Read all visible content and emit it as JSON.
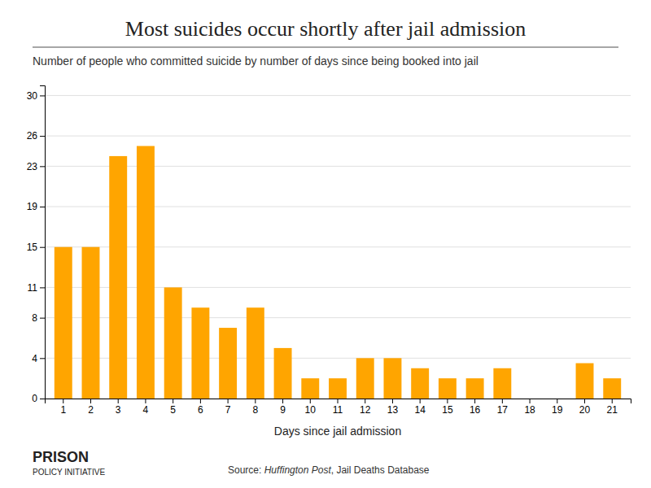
{
  "chart_data": {
    "type": "bar",
    "title": "Most suicides occur shortly after jail admission",
    "subtitle": "Number of people who committed suicide by number of days since being booked into jail",
    "xlabel": "Days since jail admission",
    "annotations": [
      "Source: ",
      "Huffington Post",
      ", Jail Deaths Database",
      "PRISON",
      "POLICY INITIATIVE"
    ],
    "categories": [
      1,
      2,
      3,
      4,
      5,
      6,
      7,
      8,
      9,
      10,
      11,
      12,
      13,
      14,
      15,
      16,
      17,
      18,
      19,
      20,
      21
    ],
    "values": [
      15,
      15,
      24,
      25,
      11,
      9,
      7,
      9,
      5,
      2,
      2,
      4,
      4,
      3,
      2,
      2,
      3,
      0,
      0,
      3.5,
      2
    ],
    "color": "#FFA500",
    "ylim": [
      0,
      31
    ],
    "yticks": [
      0,
      4,
      8,
      11,
      15,
      19,
      23,
      26,
      30
    ],
    "grid": true
  }
}
